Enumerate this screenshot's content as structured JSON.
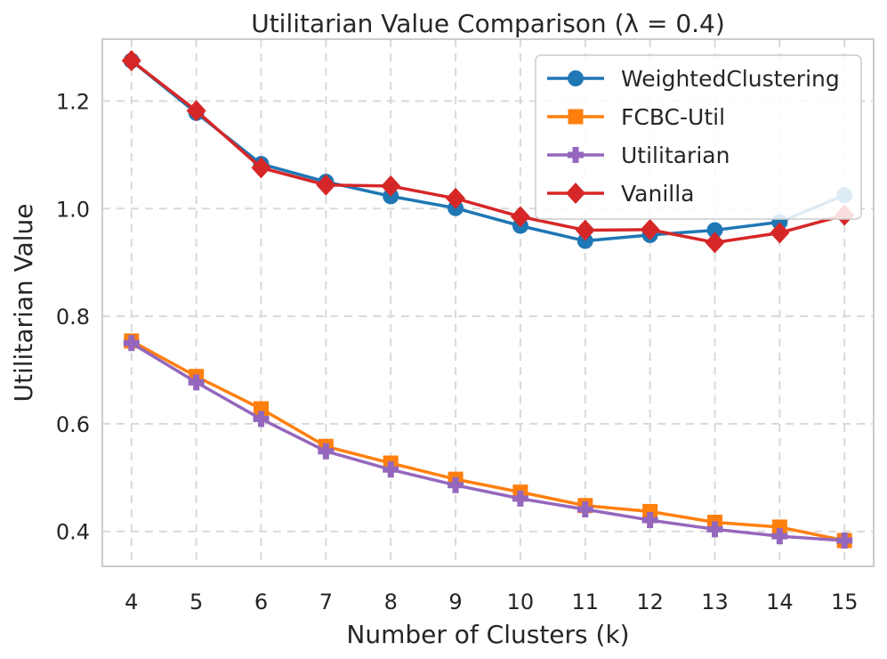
{
  "chart_data": {
    "type": "line",
    "title": "Utilitarian Value Comparison (λ = 0.4)",
    "xlabel": "Number of Clusters (k)",
    "ylabel": "Utilitarian Value",
    "x": [
      4,
      5,
      6,
      7,
      8,
      9,
      10,
      11,
      12,
      13,
      14,
      15
    ],
    "xlim": [
      3.55,
      15.45
    ],
    "ylim": [
      0.335,
      1.315
    ],
    "yticks": [
      "0.4",
      "0.6",
      "0.8",
      "1.0",
      "1.2"
    ],
    "grid": true,
    "legend_position": "top-right",
    "series": [
      {
        "name": "WeightedClustering",
        "color": "#1f77b4",
        "marker": "circle",
        "values": [
          1.275,
          1.178,
          1.083,
          1.05,
          1.023,
          1.001,
          0.968,
          0.94,
          0.951,
          0.96,
          0.975,
          1.025
        ]
      },
      {
        "name": "FCBC-Util",
        "color": "#ff7f0e",
        "marker": "square",
        "values": [
          0.754,
          0.688,
          0.628,
          0.558,
          0.527,
          0.497,
          0.473,
          0.448,
          0.437,
          0.417,
          0.408,
          0.383
        ]
      },
      {
        "name": "Utilitarian",
        "color": "#9467bd",
        "marker": "plus",
        "values": [
          0.75,
          0.677,
          0.609,
          0.549,
          0.515,
          0.486,
          0.461,
          0.441,
          0.421,
          0.404,
          0.391,
          0.383
        ]
      },
      {
        "name": "Vanilla",
        "color": "#d62728",
        "marker": "diamond",
        "values": [
          1.275,
          1.182,
          1.076,
          1.044,
          1.042,
          1.019,
          0.985,
          0.96,
          0.961,
          0.937,
          0.955,
          0.988
        ]
      }
    ]
  }
}
